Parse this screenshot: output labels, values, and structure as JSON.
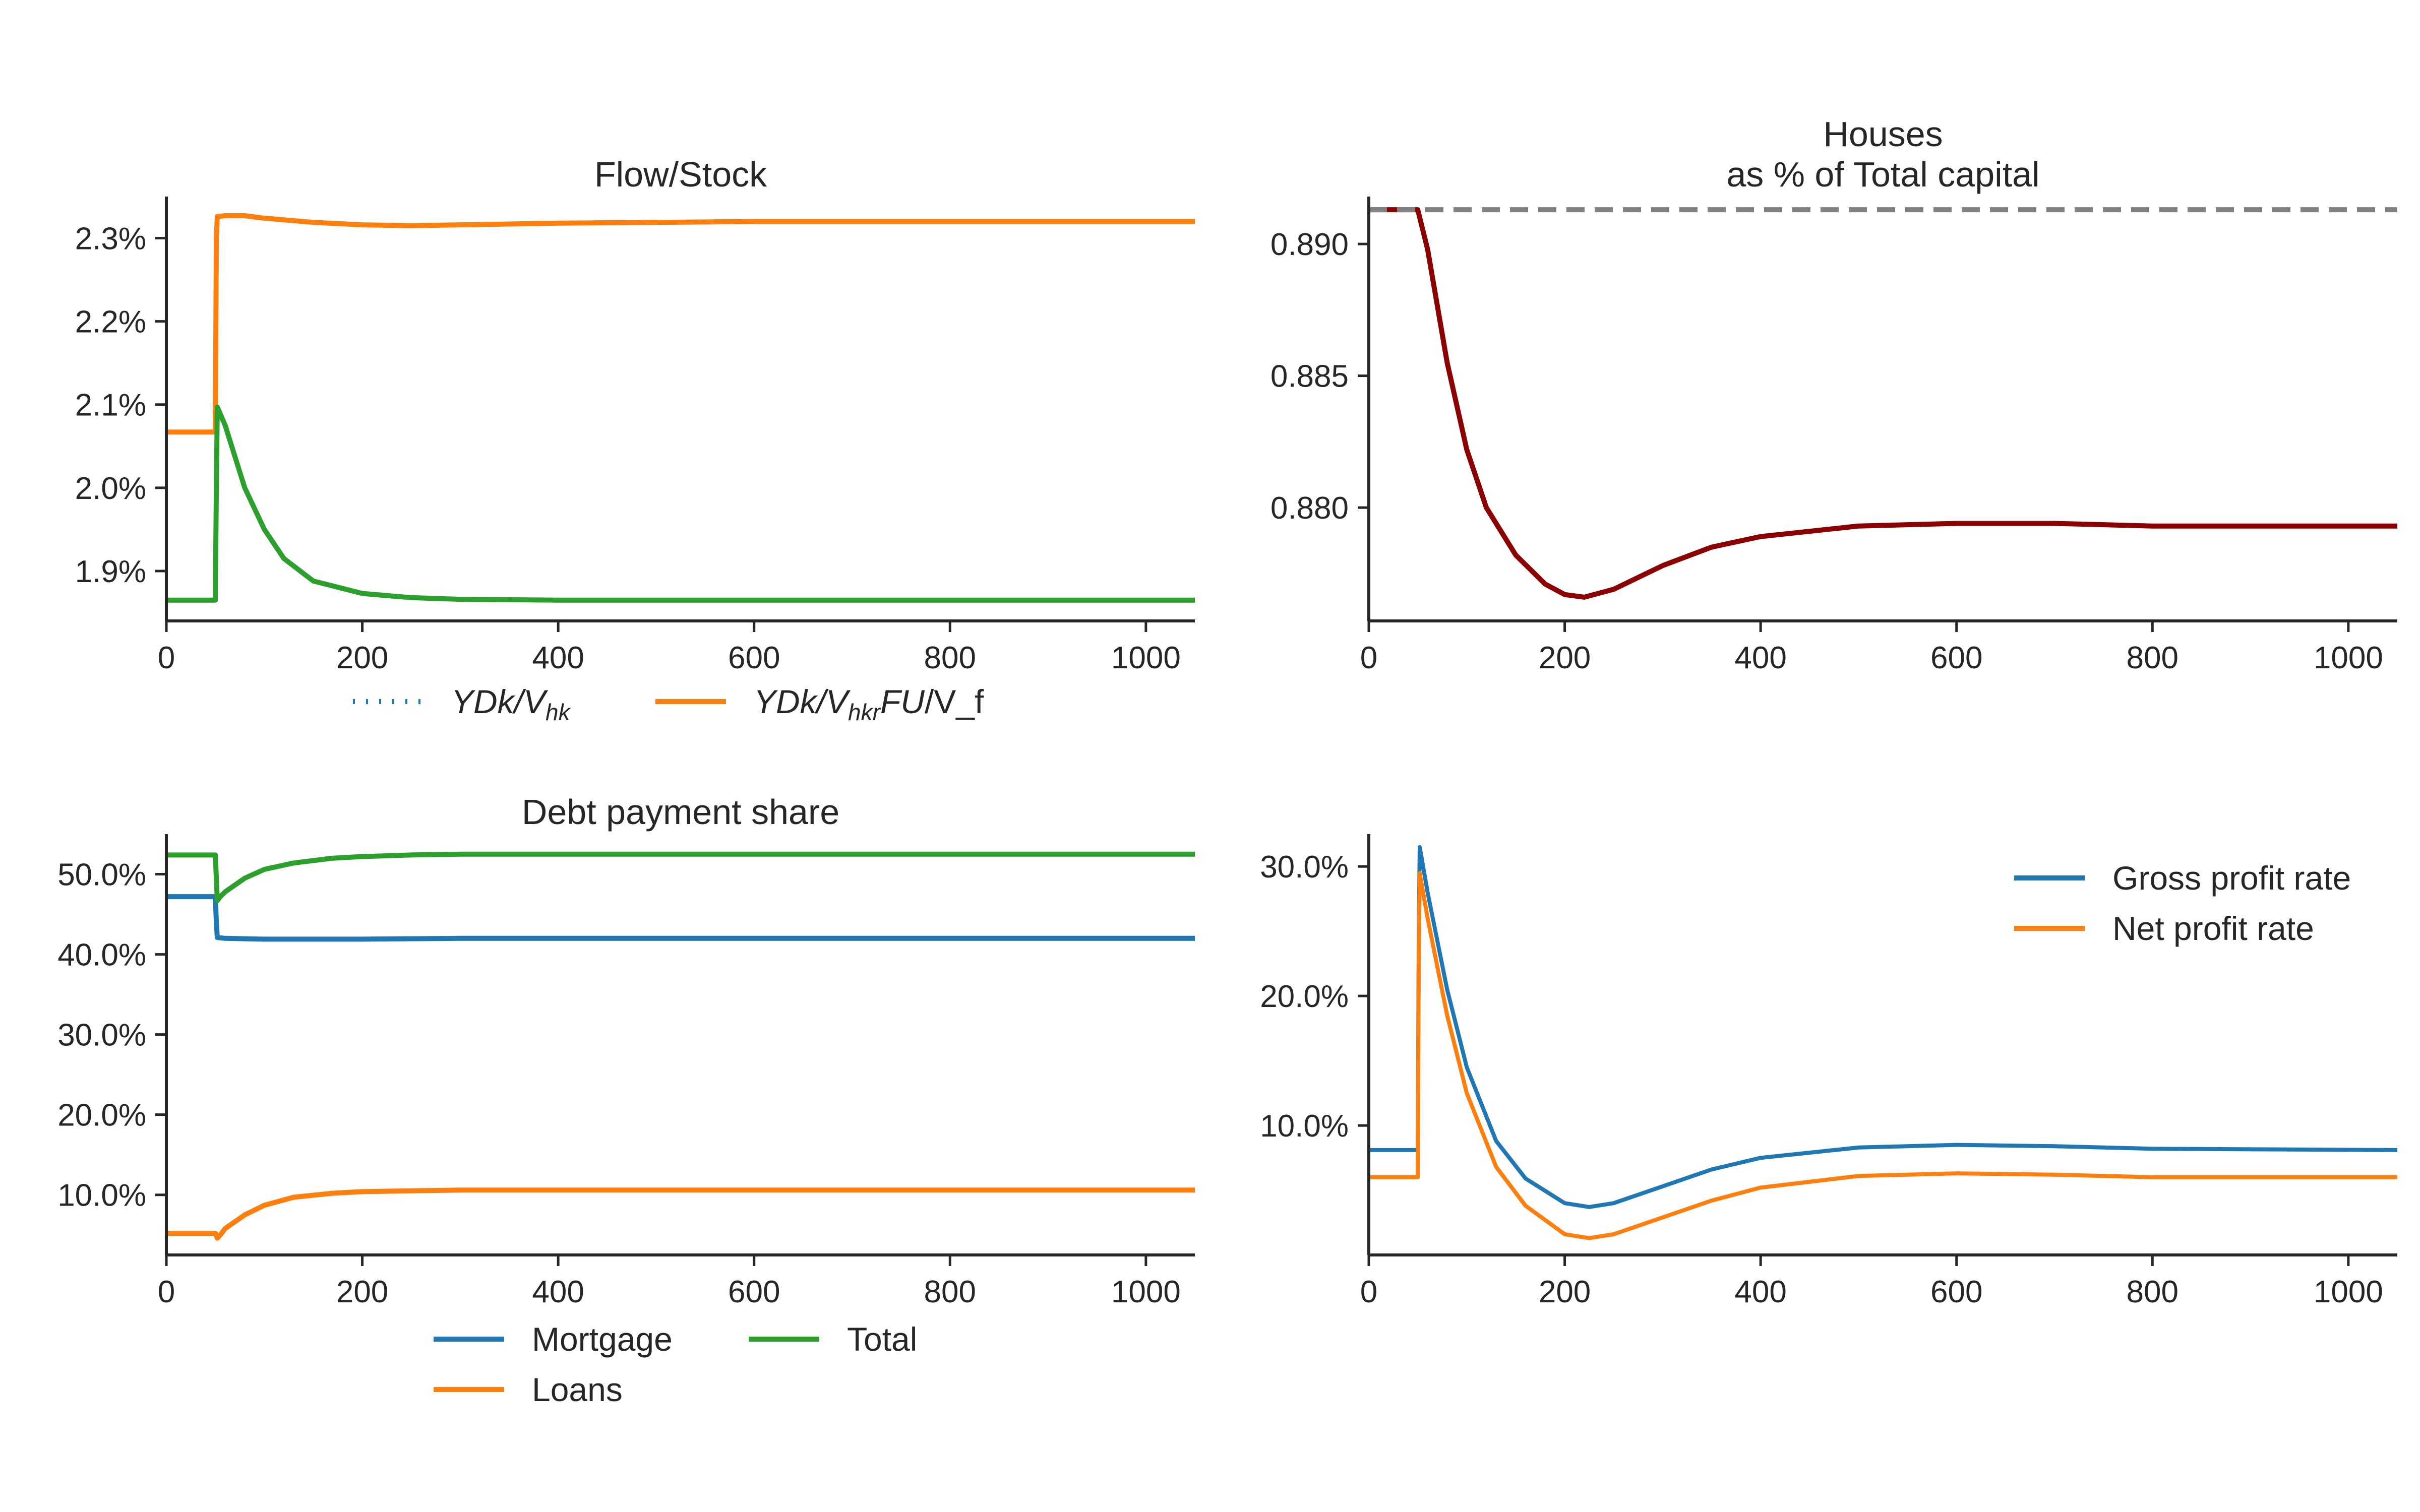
{
  "chart_data": [
    {
      "id": "flow_stock",
      "type": "line",
      "title": "Flow/Stock",
      "xlim": [
        0,
        1050
      ],
      "ylim": [
        1.84,
        2.35
      ],
      "x_ticks": [
        0,
        200,
        400,
        600,
        800,
        1000
      ],
      "x_tick_labels": [
        "0",
        "200",
        "400",
        "600",
        "800",
        "1000"
      ],
      "y_ticks": [
        1.9,
        2.0,
        2.1,
        2.2,
        2.3
      ],
      "y_tick_labels": [
        "1.9%",
        "2.0%",
        "2.1%",
        "2.2%",
        "2.3%"
      ],
      "legend_position": "below",
      "series": [
        {
          "name": "YDk/V_hk",
          "label_parts": [
            [
              "YDk/V",
              ""
            ],
            [
              "hk",
              "sub"
            ]
          ],
          "color": "#1f77b4",
          "dash": "dotted",
          "x": [],
          "y": []
        },
        {
          "name": "YDk/V_hkrFU/V_f",
          "label_parts": [
            [
              "YDk/V",
              ""
            ],
            [
              "hkr",
              "sub"
            ],
            [
              "FU",
              ""
            ],
            [
              "/V_f",
              "upright"
            ]
          ],
          "color": "#ff7f0e",
          "dash": "solid",
          "x": [
            0,
            50,
            51,
            52,
            60,
            80,
            100,
            150,
            200,
            250,
            300,
            400,
            500,
            600,
            800,
            1050
          ],
          "y": [
            2.067,
            2.067,
            2.3,
            2.326,
            2.327,
            2.327,
            2.324,
            2.319,
            2.316,
            2.315,
            2.316,
            2.318,
            2.319,
            2.32,
            2.32,
            2.32
          ]
        },
        {
          "name": "",
          "color": "#2ca02c",
          "dash": "solid",
          "x": [
            0,
            50,
            51,
            52,
            60,
            80,
            100,
            120,
            150,
            200,
            250,
            300,
            400,
            500,
            600,
            800,
            1050
          ],
          "y": [
            1.865,
            1.865,
            2.0,
            2.097,
            2.075,
            2.0,
            1.95,
            1.915,
            1.888,
            1.873,
            1.868,
            1.866,
            1.865,
            1.865,
            1.865,
            1.865,
            1.865
          ]
        }
      ]
    },
    {
      "id": "houses_share",
      "type": "line",
      "title": "Houses\nas % of Total capital",
      "title_lines": [
        "Houses",
        "as % of Total capital"
      ],
      "xlim": [
        0,
        1050
      ],
      "ylim": [
        0.8757,
        0.8918
      ],
      "x_ticks": [
        0,
        200,
        400,
        600,
        800,
        1000
      ],
      "x_tick_labels": [
        "0",
        "200",
        "400",
        "600",
        "800",
        "1000"
      ],
      "y_ticks": [
        0.88,
        0.885,
        0.89
      ],
      "y_tick_labels": [
        "0.880",
        "0.885",
        "0.890"
      ],
      "series": [
        {
          "name": "",
          "color": "#8b0000",
          "dash": "solid",
          "x": [
            0,
            50,
            60,
            80,
            100,
            120,
            150,
            180,
            200,
            220,
            250,
            300,
            350,
            400,
            500,
            600,
            700,
            800,
            1050
          ],
          "y": [
            0.8913,
            0.8913,
            0.8898,
            0.8855,
            0.8822,
            0.88,
            0.8782,
            0.8771,
            0.8767,
            0.8766,
            0.8769,
            0.8778,
            0.8785,
            0.8789,
            0.8793,
            0.8794,
            0.8794,
            0.8793,
            0.8793
          ]
        },
        {
          "name": "",
          "color": "#808080",
          "dash": "dashed",
          "x": [
            0,
            1050
          ],
          "y": [
            0.8913,
            0.8913
          ]
        }
      ]
    },
    {
      "id": "debt_payment_share",
      "type": "line",
      "title": "Debt payment share",
      "xlim": [
        0,
        1050
      ],
      "ylim": [
        2.5,
        55.0
      ],
      "x_ticks": [
        0,
        200,
        400,
        600,
        800,
        1000
      ],
      "x_tick_labels": [
        "0",
        "200",
        "400",
        "600",
        "800",
        "1000"
      ],
      "y_ticks": [
        10,
        20,
        30,
        40,
        50
      ],
      "y_tick_labels": [
        "10.0%",
        "20.0%",
        "30.0%",
        "40.0%",
        "50.0%"
      ],
      "legend_position": "below",
      "series": [
        {
          "name": "Mortgage",
          "color": "#1f77b4",
          "dash": "solid",
          "x": [
            0,
            50,
            51,
            52,
            60,
            100,
            200,
            300,
            400,
            1050
          ],
          "y": [
            47.2,
            47.2,
            44.0,
            42.1,
            42.0,
            41.9,
            41.9,
            42.0,
            42.0,
            42.0
          ]
        },
        {
          "name": "Loans",
          "color": "#ff7f0e",
          "dash": "solid",
          "x": [
            0,
            50,
            52,
            55,
            60,
            80,
            100,
            130,
            170,
            200,
            250,
            300,
            400,
            1050
          ],
          "y": [
            5.2,
            5.2,
            4.6,
            5.0,
            5.8,
            7.5,
            8.7,
            9.7,
            10.2,
            10.4,
            10.5,
            10.6,
            10.6,
            10.6
          ]
        },
        {
          "name": "Total",
          "color": "#2ca02c",
          "dash": "solid",
          "x": [
            0,
            50,
            52,
            55,
            60,
            80,
            100,
            130,
            170,
            200,
            250,
            300,
            400,
            1050
          ],
          "y": [
            52.4,
            52.4,
            46.7,
            47.2,
            47.8,
            49.5,
            50.6,
            51.4,
            52.0,
            52.2,
            52.4,
            52.5,
            52.5,
            52.5
          ]
        }
      ]
    },
    {
      "id": "profit_rates",
      "type": "line",
      "title": "",
      "xlim": [
        0,
        1050
      ],
      "ylim": [
        0,
        32.5
      ],
      "x_ticks": [
        0,
        200,
        400,
        600,
        800,
        1000
      ],
      "x_tick_labels": [
        "0",
        "200",
        "400",
        "600",
        "800",
        "1000"
      ],
      "y_ticks": [
        10,
        20,
        30
      ],
      "y_tick_labels": [
        "10.0%",
        "20.0%",
        "30.0%"
      ],
      "legend_position": "top-right",
      "series": [
        {
          "name": "Gross profit rate",
          "color": "#1f77b4",
          "dash": "solid",
          "x": [
            0,
            50,
            51,
            52,
            60,
            80,
            100,
            130,
            160,
            200,
            225,
            250,
            300,
            350,
            400,
            500,
            600,
            700,
            800,
            1050
          ],
          "y": [
            8.1,
            8.1,
            25.0,
            31.5,
            28.0,
            20.5,
            14.5,
            8.8,
            5.9,
            4.0,
            3.7,
            4.0,
            5.3,
            6.6,
            7.5,
            8.3,
            8.5,
            8.4,
            8.2,
            8.1
          ]
        },
        {
          "name": "Net profit rate",
          "color": "#ff7f0e",
          "dash": "solid",
          "x": [
            0,
            50,
            51,
            52,
            60,
            80,
            100,
            130,
            160,
            200,
            225,
            250,
            300,
            350,
            400,
            500,
            600,
            700,
            800,
            1050
          ],
          "y": [
            6.0,
            6.0,
            23.0,
            29.5,
            26.0,
            18.5,
            12.5,
            6.8,
            3.8,
            1.6,
            1.3,
            1.6,
            2.9,
            4.2,
            5.2,
            6.1,
            6.3,
            6.2,
            6.0,
            6.0
          ]
        }
      ]
    }
  ]
}
